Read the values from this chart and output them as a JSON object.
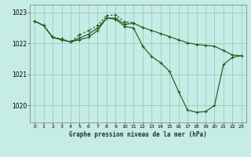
{
  "background_color": "#c5ece5",
  "grid_color": "#99ccbb",
  "line_color": "#1e5c1e",
  "title": "Graphe pression niveau de la mer (hPa)",
  "ylim_min": 1019.45,
  "ylim_max": 1023.25,
  "xlim_min": -0.5,
  "xlim_max": 23.5,
  "yticks": [
    1020,
    1021,
    1022,
    1023
  ],
  "xticks": [
    0,
    1,
    2,
    3,
    4,
    5,
    6,
    7,
    8,
    9,
    10,
    11,
    12,
    13,
    14,
    15,
    16,
    17,
    18,
    19,
    20,
    21,
    22,
    23
  ],
  "line1_x": [
    0,
    1,
    2,
    3,
    4,
    5,
    6,
    7,
    8,
    9,
    10,
    11,
    12,
    13,
    14,
    15,
    16,
    17,
    18,
    19,
    20,
    21,
    22,
    23
  ],
  "line1_y": [
    1022.72,
    1022.58,
    1022.2,
    1022.12,
    1022.05,
    1022.18,
    1022.3,
    1022.5,
    1022.82,
    1022.82,
    1022.62,
    1022.65,
    1022.52,
    1022.42,
    1022.32,
    1022.22,
    1022.12,
    1022.02,
    1021.97,
    1021.94,
    1021.91,
    1021.77,
    1021.63,
    1021.6
  ],
  "line2_x": [
    0,
    1,
    2,
    3,
    4,
    5,
    6,
    7,
    8,
    9,
    10,
    11,
    12,
    13,
    14,
    15,
    16,
    17,
    18,
    19,
    20,
    21,
    22,
    23
  ],
  "line2_y": [
    1022.72,
    1022.58,
    1022.2,
    1022.12,
    1022.05,
    1022.12,
    1022.2,
    1022.42,
    1022.82,
    1022.78,
    1022.55,
    1022.5,
    1021.92,
    1021.58,
    1021.38,
    1021.1,
    1020.45,
    1019.85,
    1019.78,
    1019.8,
    1020.0,
    1021.32,
    1021.55,
    1021.6
  ],
  "line3_x": [
    0,
    1,
    2,
    3,
    4,
    5,
    6,
    7,
    8,
    9,
    10,
    11
  ],
  "line3_y": [
    1022.72,
    1022.58,
    1022.2,
    1022.15,
    1022.05,
    1022.28,
    1022.42,
    1022.58,
    1022.9,
    1022.92,
    1022.7,
    1022.68
  ]
}
